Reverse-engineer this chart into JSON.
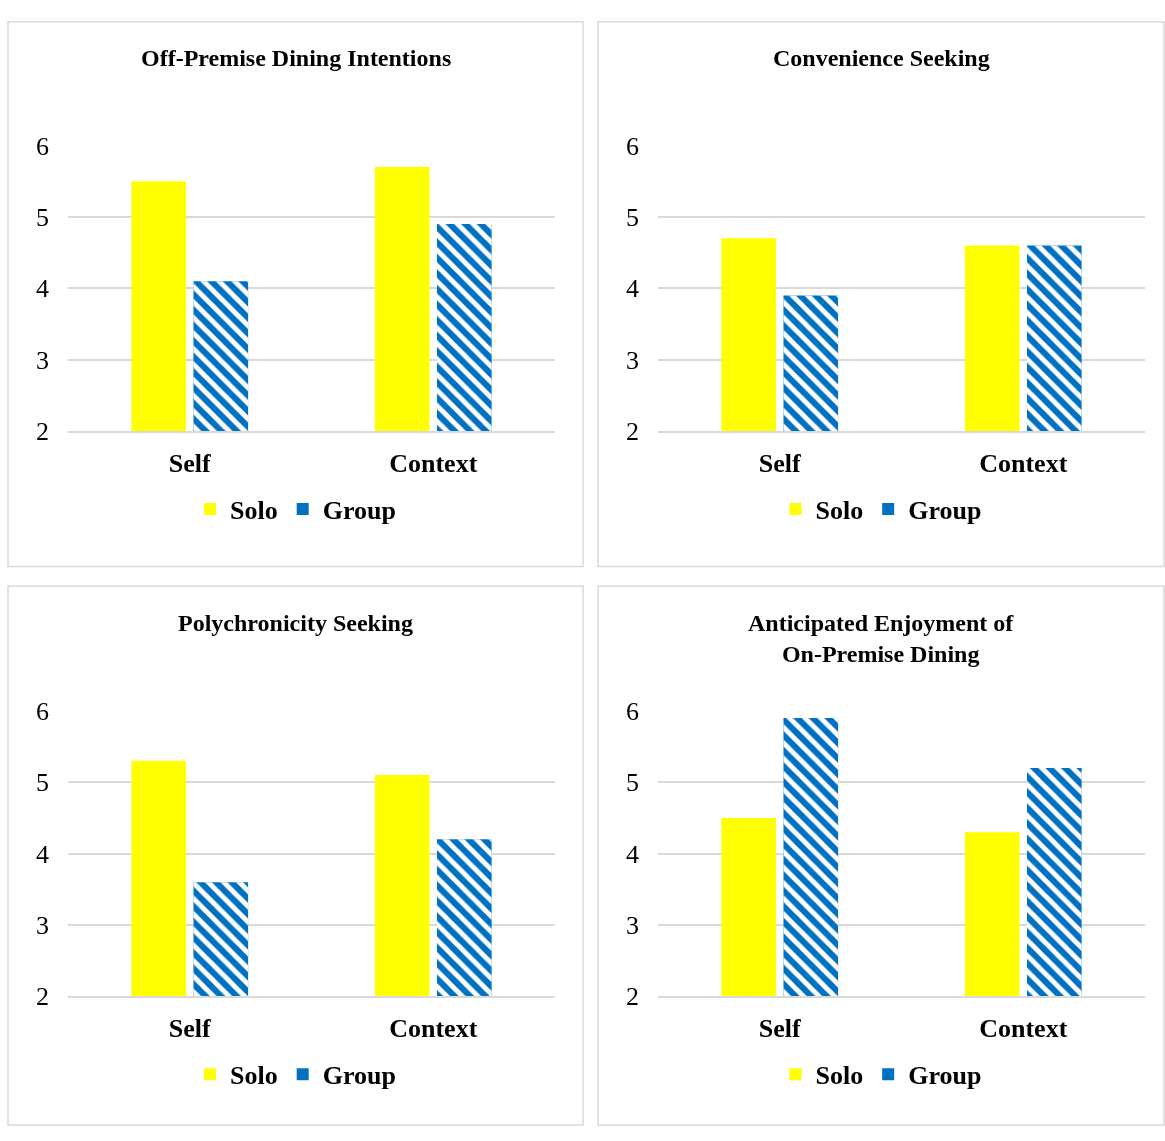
{
  "chart_data": [
    {
      "type": "bar",
      "title": "Off-Premise Dining Intentions",
      "categories": [
        "Self",
        "Context"
      ],
      "ylim": [
        2,
        6
      ],
      "yticks": [
        2,
        3,
        4,
        5,
        6
      ],
      "grid": "y",
      "legend": "bottom",
      "series": [
        {
          "name": "Solo",
          "color": "#ffff00",
          "values": [
            5.5,
            5.7
          ]
        },
        {
          "name": "Group",
          "color": "#0070c0",
          "values": [
            4.1,
            4.9
          ]
        }
      ]
    },
    {
      "type": "bar",
      "title": "Convenience Seeking",
      "categories": [
        "Self",
        "Context"
      ],
      "ylim": [
        2,
        6
      ],
      "yticks": [
        2,
        3,
        4,
        5,
        6
      ],
      "grid": "y",
      "legend": "bottom",
      "series": [
        {
          "name": "Solo",
          "color": "#ffff00",
          "values": [
            4.7,
            4.6
          ]
        },
        {
          "name": "Group",
          "color": "#0070c0",
          "values": [
            3.9,
            4.6
          ]
        }
      ]
    },
    {
      "type": "bar",
      "title": "Polychronicity Seeking",
      "categories": [
        "Self",
        "Context"
      ],
      "ylim": [
        2,
        6
      ],
      "yticks": [
        2,
        3,
        4,
        5,
        6
      ],
      "grid": "y",
      "legend": "bottom",
      "series": [
        {
          "name": "Solo",
          "color": "#ffff00",
          "values": [
            5.3,
            5.1
          ]
        },
        {
          "name": "Group",
          "color": "#0070c0",
          "values": [
            3.6,
            4.2
          ]
        }
      ]
    },
    {
      "type": "bar",
      "title": "Anticipated Enjoyment of On-Premise Dining",
      "categories": [
        "Self",
        "Context"
      ],
      "ylim": [
        2,
        6
      ],
      "yticks": [
        2,
        3,
        4,
        5,
        6
      ],
      "grid": "y",
      "legend": "bottom",
      "series": [
        {
          "name": "Solo",
          "color": "#ffff00",
          "values": [
            4.5,
            4.3
          ]
        },
        {
          "name": "Group",
          "color": "#0070c0",
          "values": [
            5.9,
            5.2
          ]
        }
      ]
    }
  ]
}
